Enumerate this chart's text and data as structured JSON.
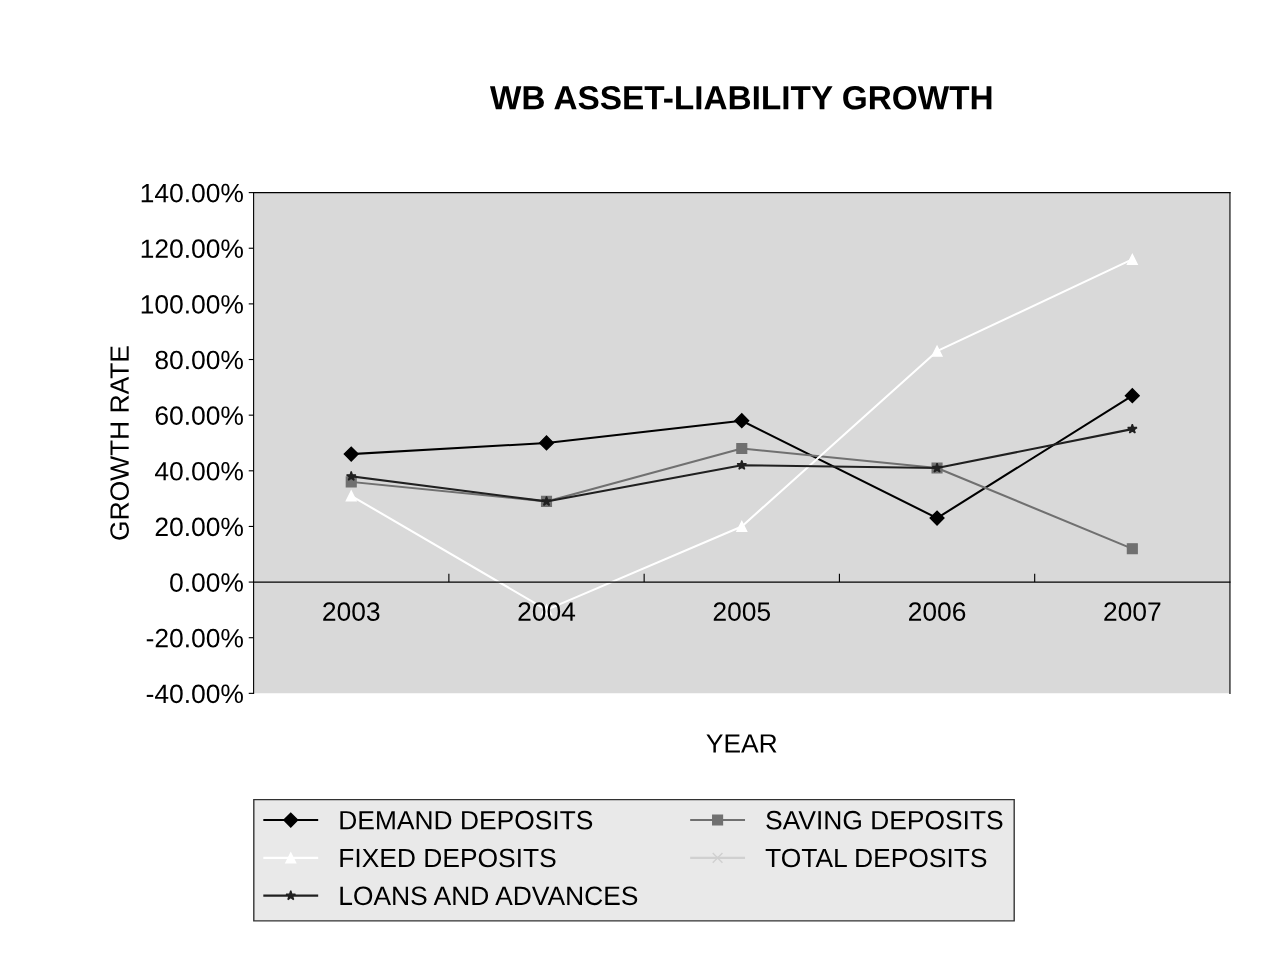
{
  "chart_data": {
    "type": "line",
    "title": "WB ASSET-LIABILITY GROWTH",
    "xlabel": "YEAR",
    "ylabel": "GROWTH RATE",
    "categories": [
      "2003",
      "2004",
      "2005",
      "2006",
      "2007"
    ],
    "series": [
      {
        "name": "DEMAND DEPOSITS",
        "color": "#000000",
        "marker": "diamond",
        "values": [
          46,
          50,
          58,
          23,
          67
        ]
      },
      {
        "name": "SAVING DEPOSITS",
        "color": "#707070",
        "marker": "square",
        "values": [
          36,
          29,
          48,
          41,
          12
        ]
      },
      {
        "name": "FIXED DEPOSITS",
        "color": "#ffffff",
        "marker": "triangle",
        "values": [
          31,
          -10,
          20,
          83,
          116
        ]
      },
      {
        "name": "TOTAL DEPOSITS",
        "color": "#d0d0d0",
        "marker": "cross",
        "values": [
          null,
          null,
          null,
          null,
          null
        ]
      },
      {
        "name": "LOANS AND ADVANCES",
        "color": "#202020",
        "marker": "star",
        "values": [
          38,
          29,
          42,
          41,
          55
        ]
      }
    ],
    "ylim": [
      -40,
      140
    ],
    "yticks": [
      {
        "value": -40,
        "label": "-40.00%"
      },
      {
        "value": -20,
        "label": "-20.00%"
      },
      {
        "value": 0,
        "label": "0.00%"
      },
      {
        "value": 20,
        "label": "20.00%"
      },
      {
        "value": 40,
        "label": "40.00%"
      },
      {
        "value": 60,
        "label": "60.00%"
      },
      {
        "value": 80,
        "label": "80.00%"
      },
      {
        "value": 100,
        "label": "100.00%"
      },
      {
        "value": 120,
        "label": "120.00%"
      },
      {
        "value": 140,
        "label": "140.00%"
      }
    ],
    "grid": false,
    "legend": "bottom"
  }
}
